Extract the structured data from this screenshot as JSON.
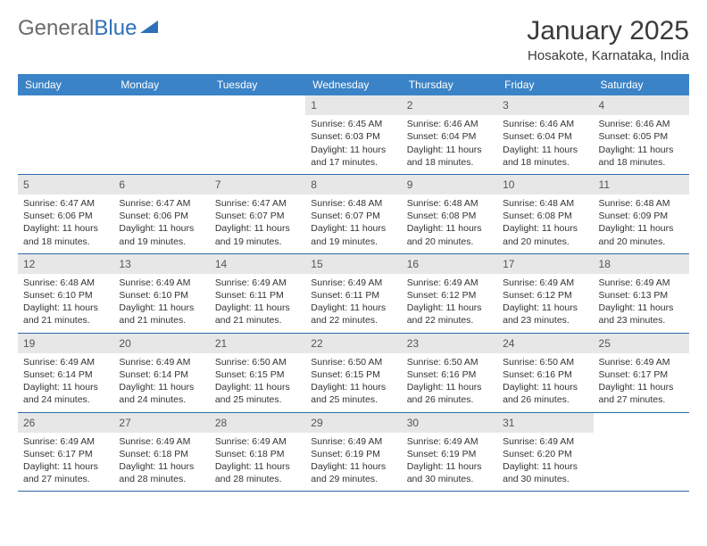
{
  "logo": {
    "text1": "General",
    "text2": "Blue"
  },
  "title": "January 2025",
  "location": "Hosakote, Karnataka, India",
  "colors": {
    "header_bg": "#3b83c7",
    "header_fg": "#ffffff",
    "daynum_bg": "#e7e7e7",
    "border": "#2f6aa8",
    "logo_gray": "#6b6b6b",
    "logo_blue": "#2f71b8"
  },
  "weekdays": [
    "Sunday",
    "Monday",
    "Tuesday",
    "Wednesday",
    "Thursday",
    "Friday",
    "Saturday"
  ],
  "weeks": [
    [
      {
        "empty": true
      },
      {
        "empty": true
      },
      {
        "empty": true
      },
      {
        "n": "1",
        "sr": "6:45 AM",
        "ss": "6:03 PM",
        "dl": "11 hours and 17 minutes."
      },
      {
        "n": "2",
        "sr": "6:46 AM",
        "ss": "6:04 PM",
        "dl": "11 hours and 18 minutes."
      },
      {
        "n": "3",
        "sr": "6:46 AM",
        "ss": "6:04 PM",
        "dl": "11 hours and 18 minutes."
      },
      {
        "n": "4",
        "sr": "6:46 AM",
        "ss": "6:05 PM",
        "dl": "11 hours and 18 minutes."
      }
    ],
    [
      {
        "n": "5",
        "sr": "6:47 AM",
        "ss": "6:06 PM",
        "dl": "11 hours and 18 minutes."
      },
      {
        "n": "6",
        "sr": "6:47 AM",
        "ss": "6:06 PM",
        "dl": "11 hours and 19 minutes."
      },
      {
        "n": "7",
        "sr": "6:47 AM",
        "ss": "6:07 PM",
        "dl": "11 hours and 19 minutes."
      },
      {
        "n": "8",
        "sr": "6:48 AM",
        "ss": "6:07 PM",
        "dl": "11 hours and 19 minutes."
      },
      {
        "n": "9",
        "sr": "6:48 AM",
        "ss": "6:08 PM",
        "dl": "11 hours and 20 minutes."
      },
      {
        "n": "10",
        "sr": "6:48 AM",
        "ss": "6:08 PM",
        "dl": "11 hours and 20 minutes."
      },
      {
        "n": "11",
        "sr": "6:48 AM",
        "ss": "6:09 PM",
        "dl": "11 hours and 20 minutes."
      }
    ],
    [
      {
        "n": "12",
        "sr": "6:48 AM",
        "ss": "6:10 PM",
        "dl": "11 hours and 21 minutes."
      },
      {
        "n": "13",
        "sr": "6:49 AM",
        "ss": "6:10 PM",
        "dl": "11 hours and 21 minutes."
      },
      {
        "n": "14",
        "sr": "6:49 AM",
        "ss": "6:11 PM",
        "dl": "11 hours and 21 minutes."
      },
      {
        "n": "15",
        "sr": "6:49 AM",
        "ss": "6:11 PM",
        "dl": "11 hours and 22 minutes."
      },
      {
        "n": "16",
        "sr": "6:49 AM",
        "ss": "6:12 PM",
        "dl": "11 hours and 22 minutes."
      },
      {
        "n": "17",
        "sr": "6:49 AM",
        "ss": "6:12 PM",
        "dl": "11 hours and 23 minutes."
      },
      {
        "n": "18",
        "sr": "6:49 AM",
        "ss": "6:13 PM",
        "dl": "11 hours and 23 minutes."
      }
    ],
    [
      {
        "n": "19",
        "sr": "6:49 AM",
        "ss": "6:14 PM",
        "dl": "11 hours and 24 minutes."
      },
      {
        "n": "20",
        "sr": "6:49 AM",
        "ss": "6:14 PM",
        "dl": "11 hours and 24 minutes."
      },
      {
        "n": "21",
        "sr": "6:50 AM",
        "ss": "6:15 PM",
        "dl": "11 hours and 25 minutes."
      },
      {
        "n": "22",
        "sr": "6:50 AM",
        "ss": "6:15 PM",
        "dl": "11 hours and 25 minutes."
      },
      {
        "n": "23",
        "sr": "6:50 AM",
        "ss": "6:16 PM",
        "dl": "11 hours and 26 minutes."
      },
      {
        "n": "24",
        "sr": "6:50 AM",
        "ss": "6:16 PM",
        "dl": "11 hours and 26 minutes."
      },
      {
        "n": "25",
        "sr": "6:49 AM",
        "ss": "6:17 PM",
        "dl": "11 hours and 27 minutes."
      }
    ],
    [
      {
        "n": "26",
        "sr": "6:49 AM",
        "ss": "6:17 PM",
        "dl": "11 hours and 27 minutes."
      },
      {
        "n": "27",
        "sr": "6:49 AM",
        "ss": "6:18 PM",
        "dl": "11 hours and 28 minutes."
      },
      {
        "n": "28",
        "sr": "6:49 AM",
        "ss": "6:18 PM",
        "dl": "11 hours and 28 minutes."
      },
      {
        "n": "29",
        "sr": "6:49 AM",
        "ss": "6:19 PM",
        "dl": "11 hours and 29 minutes."
      },
      {
        "n": "30",
        "sr": "6:49 AM",
        "ss": "6:19 PM",
        "dl": "11 hours and 30 minutes."
      },
      {
        "n": "31",
        "sr": "6:49 AM",
        "ss": "6:20 PM",
        "dl": "11 hours and 30 minutes."
      },
      {
        "empty": true
      }
    ]
  ],
  "labels": {
    "sunrise": "Sunrise:",
    "sunset": "Sunset:",
    "daylight": "Daylight:"
  }
}
